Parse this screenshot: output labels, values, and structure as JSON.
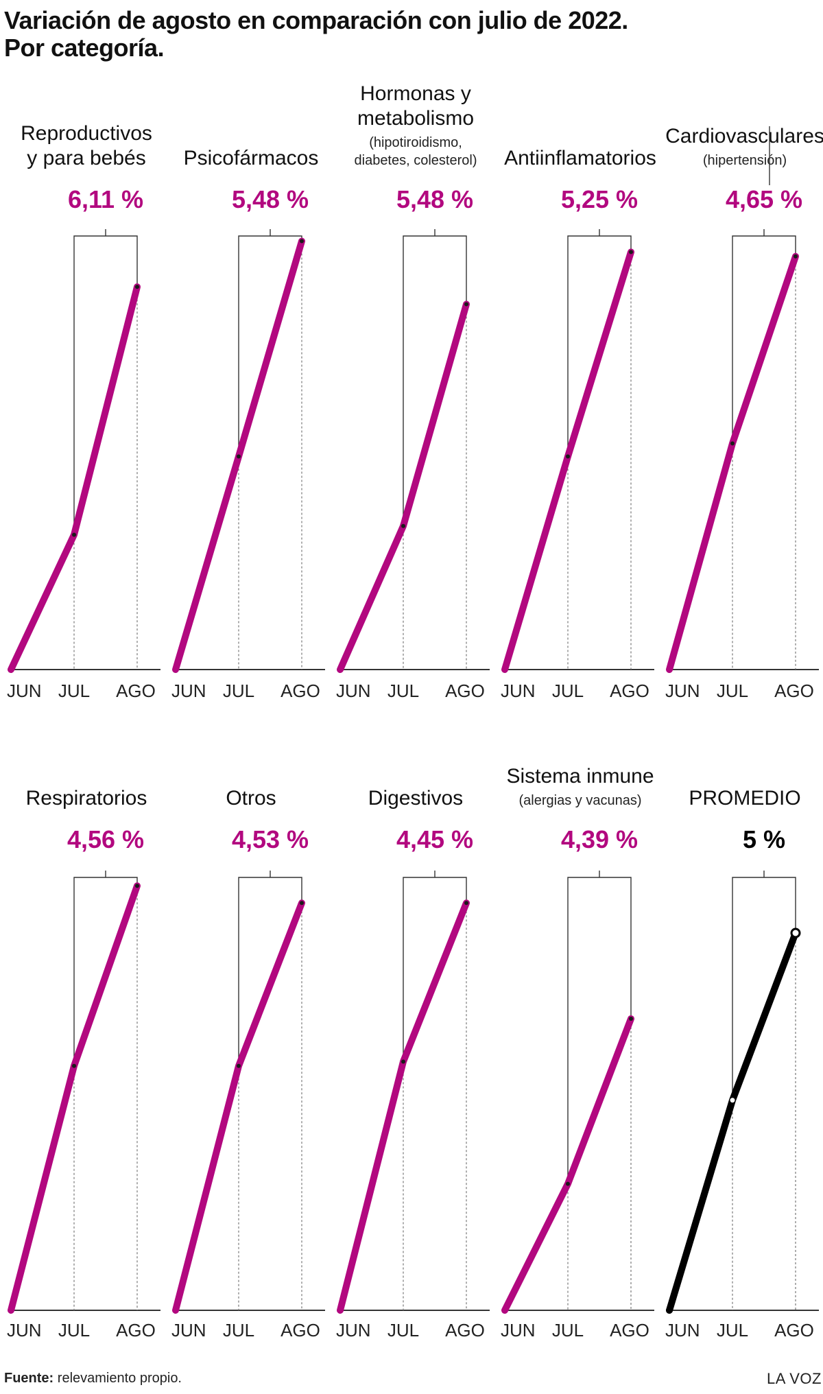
{
  "title_line1": "Variación de agosto en comparación con julio de 2022.",
  "title_line2": "Por categoría.",
  "colors": {
    "series": "#b2087f",
    "average": "#000000",
    "grid": "#333333",
    "label": "#b2087f"
  },
  "chart_data": [
    {
      "type": "line",
      "title": [
        "Reproductivos",
        "y para bebés"
      ],
      "subtitle": [],
      "percent_label": "6,11 %",
      "categories": [
        "JUN",
        "JUL",
        "AGO"
      ],
      "values": [
        0,
        0.31,
        0.88
      ],
      "ylim": [
        0,
        1
      ]
    },
    {
      "type": "line",
      "title": [
        "Psicofármacos"
      ],
      "subtitle": [],
      "percent_label": "5,48 %",
      "categories": [
        "JUN",
        "JUL",
        "AGO"
      ],
      "values": [
        0,
        0.49,
        0.985
      ],
      "ylim": [
        0,
        1
      ]
    },
    {
      "type": "line",
      "title": [
        "Hormonas y",
        "metabolismo"
      ],
      "subtitle": [
        "(hipotiroidismo,",
        "diabetes, colesterol)"
      ],
      "percent_label": "5,48 %",
      "categories": [
        "JUN",
        "JUL",
        "AGO"
      ],
      "values": [
        0,
        0.33,
        0.84
      ],
      "ylim": [
        0,
        1
      ]
    },
    {
      "type": "line",
      "title": [
        "Antiinflamatorios"
      ],
      "subtitle": [],
      "percent_label": "5,25 %",
      "categories": [
        "JUN",
        "JUL",
        "AGO"
      ],
      "values": [
        0,
        0.49,
        0.96
      ],
      "ylim": [
        0,
        1
      ]
    },
    {
      "type": "line",
      "title": [
        "Cardiovasculares"
      ],
      "subtitle": [
        "(hipertensión)"
      ],
      "percent_label": "4,65 %",
      "categories": [
        "JUN",
        "JUL",
        "AGO"
      ],
      "values": [
        0,
        0.52,
        0.95
      ],
      "ylim": [
        0,
        1
      ]
    },
    {
      "type": "line",
      "title": [
        "Respiratorios"
      ],
      "subtitle": [],
      "percent_label": "4,56 %",
      "categories": [
        "JUN",
        "JUL",
        "AGO"
      ],
      "values": [
        0,
        0.57,
        0.99
      ],
      "ylim": [
        0,
        1
      ]
    },
    {
      "type": "line",
      "title": [
        "Otros"
      ],
      "subtitle": [],
      "percent_label": "4,53 %",
      "categories": [
        "JUN",
        "JUL",
        "AGO"
      ],
      "values": [
        0,
        0.57,
        0.95
      ],
      "ylim": [
        0,
        1
      ]
    },
    {
      "type": "line",
      "title": [
        "Digestivos"
      ],
      "subtitle": [],
      "percent_label": "4,45 %",
      "categories": [
        "JUN",
        "JUL",
        "AGO"
      ],
      "values": [
        0,
        0.58,
        0.95
      ],
      "ylim": [
        0,
        1
      ]
    },
    {
      "type": "line",
      "title": [
        "Sistema inmune"
      ],
      "subtitle": [
        "(alergias y vacunas)"
      ],
      "percent_label": "4,39 %",
      "categories": [
        "JUN",
        "JUL",
        "AGO"
      ],
      "values": [
        0,
        0.295,
        0.68
      ],
      "ylim": [
        0,
        1
      ]
    },
    {
      "type": "line",
      "title": [
        "PROMEDIO"
      ],
      "subtitle": [],
      "percent_label": "5 %",
      "categories": [
        "JUN",
        "JUL",
        "AGO"
      ],
      "values": [
        0,
        0.49,
        0.88
      ],
      "ylim": [
        0,
        1
      ],
      "average": true
    }
  ],
  "footer": {
    "source_label": "Fuente:",
    "source_text": "relevamiento propio.",
    "brand": "LA VOZ"
  }
}
